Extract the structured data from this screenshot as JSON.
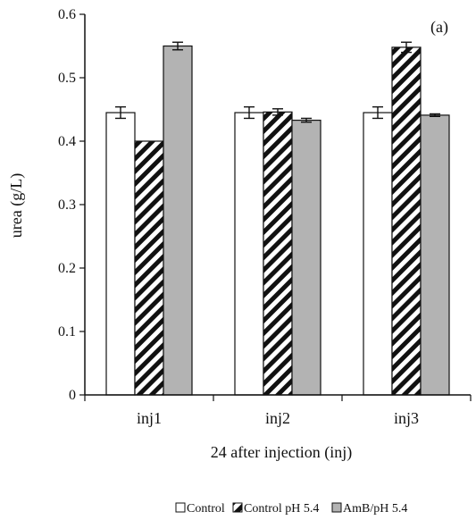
{
  "chart_data": {
    "type": "bar",
    "panel_label": "(a)",
    "xlabel": "24 after injection (inj)",
    "ylabel": "urea (g/L)",
    "ylim": [
      0,
      0.6
    ],
    "yticks": [
      "0",
      "0.1",
      "0.2",
      "0.3",
      "0.4",
      "0.5",
      "0.6"
    ],
    "categories": [
      "inj1",
      "inj2",
      "inj3"
    ],
    "grid": false,
    "legend_position": "bottom",
    "series": [
      {
        "name": "Control",
        "values": [
          0.445,
          0.445,
          0.445
        ],
        "errors": [
          0.009,
          0.009,
          0.009
        ],
        "fill": "#ffffff",
        "pattern": "none"
      },
      {
        "name": "Control pH 5.4",
        "values": [
          0.4,
          0.446,
          0.548
        ],
        "errors": [
          0.0,
          0.005,
          0.008
        ],
        "fill": "#ffffff",
        "pattern": "diagonal-hatch"
      },
      {
        "name": "AmB/pH 5.4",
        "values": [
          0.55,
          0.433,
          0.441
        ],
        "errors": [
          0.006,
          0.003,
          0.002
        ],
        "fill": "#b3b3b3",
        "pattern": "none"
      }
    ]
  },
  "colors": {
    "axis": "#111111",
    "bar_edge": "#111111",
    "gray_fill": "#b3b3b3",
    "hatch": "#111111"
  }
}
